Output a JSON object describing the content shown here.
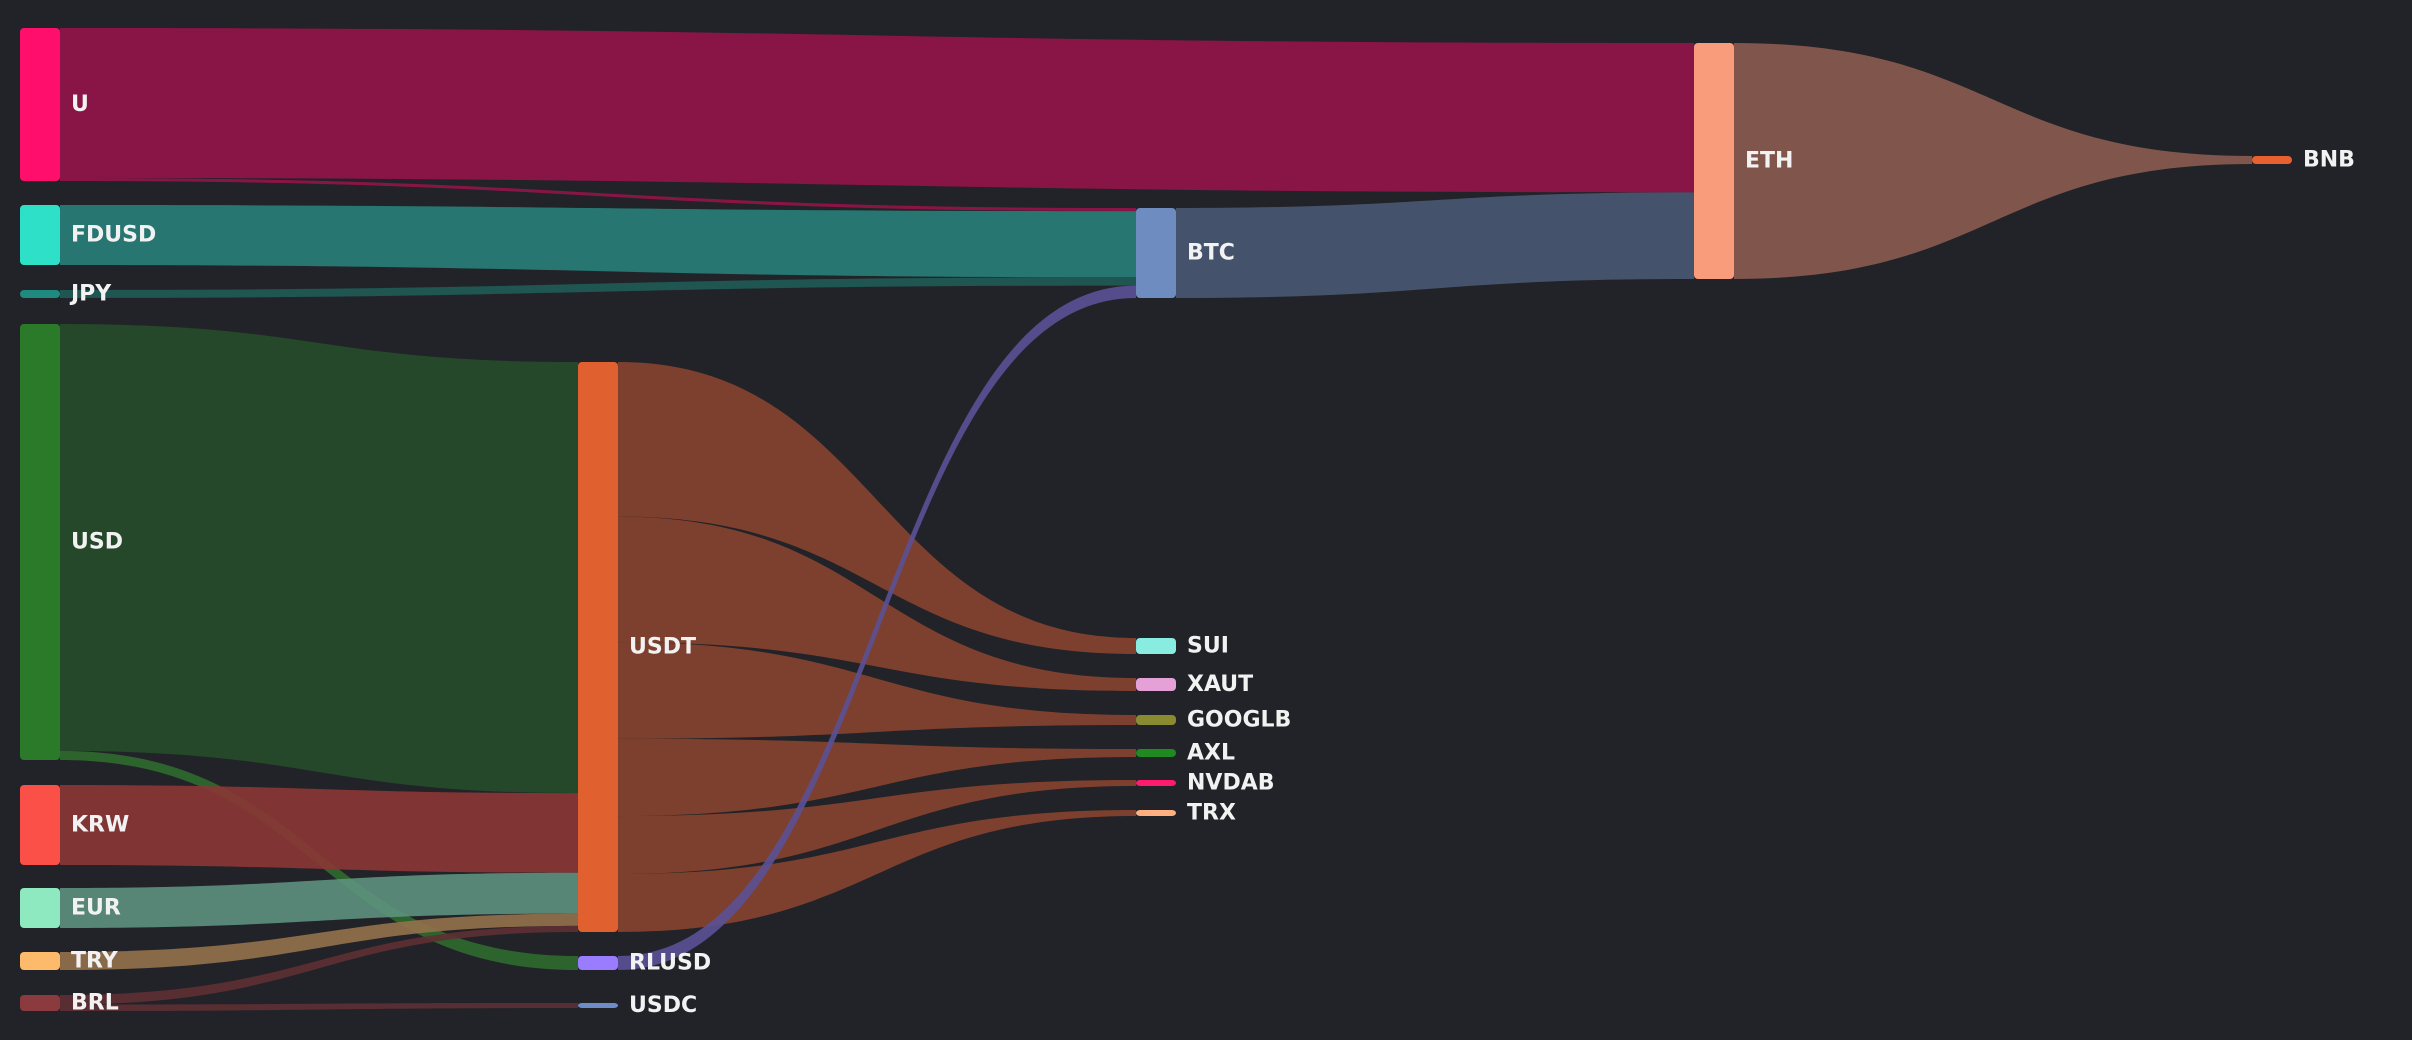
{
  "chart_data": {
    "type": "sankey",
    "background": "#222328",
    "nodes": [
      {
        "id": "U",
        "label": "U",
        "color": "#ff0f6b"
      },
      {
        "id": "FDUSD",
        "label": "FDUSD",
        "color": "#2ee0c8"
      },
      {
        "id": "JPY",
        "label": "JPY",
        "color": "#1e8a80"
      },
      {
        "id": "USD",
        "label": "USD",
        "color": "#2a7a2a"
      },
      {
        "id": "KRW",
        "label": "KRW",
        "color": "#fa5048"
      },
      {
        "id": "EUR",
        "label": "EUR",
        "color": "#8ee8c0"
      },
      {
        "id": "TRY",
        "label": "TRY",
        "color": "#fdba6a"
      },
      {
        "id": "BRL",
        "label": "BRL",
        "color": "#8b3a3e"
      },
      {
        "id": "USDT",
        "label": "USDT",
        "color": "#e06030"
      },
      {
        "id": "RLUSD",
        "label": "RLUSD",
        "color": "#9a7cff"
      },
      {
        "id": "USDC",
        "label": "USDC",
        "color": "#6e8cc8"
      },
      {
        "id": "BTC",
        "label": "BTC",
        "color": "#6e8cc0"
      },
      {
        "id": "SUI",
        "label": "SUI",
        "color": "#88ece0"
      },
      {
        "id": "XAUT",
        "label": "XAUT",
        "color": "#e6a0d8"
      },
      {
        "id": "GOOGLB",
        "label": "GOOGLB",
        "color": "#8a8a30"
      },
      {
        "id": "AXL",
        "label": "AXL",
        "color": "#1f8a1f"
      },
      {
        "id": "NVDAB",
        "label": "NVDAB",
        "color": "#ff1b6e"
      },
      {
        "id": "TRX",
        "label": "TRX",
        "color": "#ffb080"
      },
      {
        "id": "ETH",
        "label": "ETH",
        "color": "#f89c7c"
      },
      {
        "id": "BNB",
        "label": "BNB",
        "color": "#e66030"
      }
    ],
    "links": [
      {
        "source": "U",
        "target": "ETH",
        "value": 150,
        "color": "#951449"
      },
      {
        "source": "U",
        "target": "BTC",
        "value": 3,
        "color": "#951449"
      },
      {
        "source": "FDUSD",
        "target": "BTC",
        "value": 64,
        "color": "#288079"
      },
      {
        "source": "JPY",
        "target": "BTC",
        "value": 8,
        "color": "#1f5c56"
      },
      {
        "source": "USD",
        "target": "USDT",
        "value": 422,
        "color": "#264c2a"
      },
      {
        "source": "USD",
        "target": "RLUSD",
        "value": 9,
        "color": "#2f6a2c"
      },
      {
        "source": "KRW",
        "target": "USDT",
        "value": 78,
        "color": "#8b3635"
      },
      {
        "source": "EUR",
        "target": "USDT",
        "value": 40,
        "color": "#5d917e"
      },
      {
        "source": "TRY",
        "target": "USDT",
        "value": 12,
        "color": "#93714b"
      },
      {
        "source": "BRL",
        "target": "USDT",
        "value": 6,
        "color": "#5e3033"
      },
      {
        "source": "BRL",
        "target": "USDC",
        "value": 4,
        "color": "#5e3033"
      },
      {
        "source": "USDT",
        "target": "SUI",
        "value": 16,
        "color": "#88442f"
      },
      {
        "source": "USDT",
        "target": "XAUT",
        "value": 13,
        "color": "#88442f"
      },
      {
        "source": "USDT",
        "target": "GOOGLB",
        "value": 10,
        "color": "#88442f"
      },
      {
        "source": "USDT",
        "target": "AXL",
        "value": 8,
        "color": "#88442f"
      },
      {
        "source": "USDT",
        "target": "NVDAB",
        "value": 6,
        "color": "#88442f"
      },
      {
        "source": "USDT",
        "target": "TRX",
        "value": 6,
        "color": "#88442f"
      },
      {
        "source": "RLUSD",
        "target": "BTC",
        "value": 12,
        "color": "#5b5196"
      },
      {
        "source": "BTC",
        "target": "ETH",
        "value": 87,
        "color": "#485873"
      },
      {
        "source": "ETH",
        "target": "BNB",
        "value": 8,
        "color": "#8b5c50"
      }
    ]
  }
}
